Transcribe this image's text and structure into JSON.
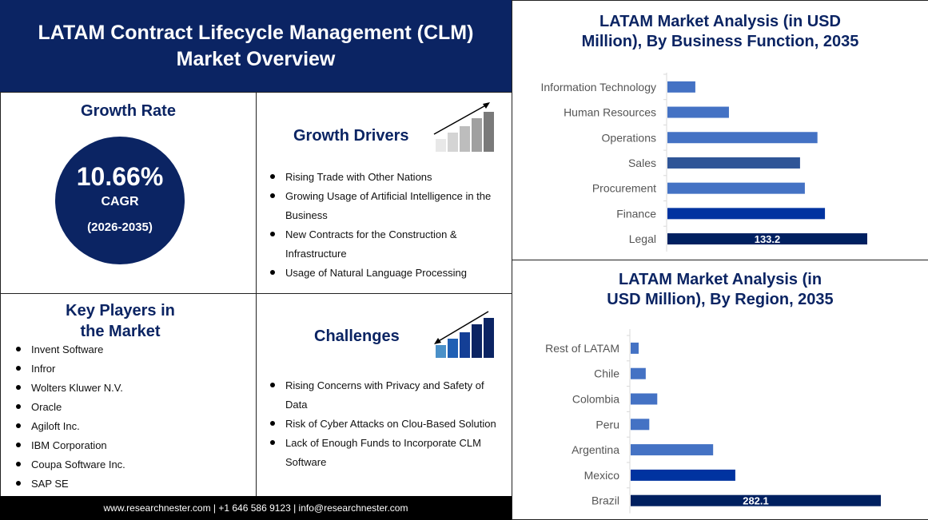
{
  "header": {
    "title_line1": "LATAM Contract Lifecycle Management (CLM)",
    "title_line2": "Market Overview"
  },
  "growth": {
    "title": "Growth Rate",
    "value": "10.66%",
    "label": "CAGR",
    "period": "(2026-2035)"
  },
  "drivers": {
    "title": "Growth Drivers",
    "items": [
      "Rising Trade with Other Nations",
      "Growing Usage of Artificial Intelligence in the Business",
      "New Contracts for the Construction & Infrastructure",
      "Usage of Natural Language Processing"
    ]
  },
  "players": {
    "title_line1": "Key Players in",
    "title_line2": "the Market",
    "items": [
      "Invent Software",
      "Infror",
      "Wolters Kluwer N.V.",
      "Oracle",
      "Agiloft Inc.",
      "IBM Corporation",
      "Coupa Software Inc.",
      "SAP SE"
    ]
  },
  "challenges": {
    "title": "Challenges",
    "items": [
      "Rising Concerns with Privacy and Safety of Data",
      "Risk of Cyber Attacks on Clou-Based Solution",
      "Lack of Enough Funds to Incorporate CLM Software"
    ]
  },
  "footer": {
    "text": "www.researchnester.com  | +1 646 586 9123 | info@researchnester.com"
  },
  "chart_data": [
    {
      "type": "bar",
      "orientation": "horizontal",
      "title": "LATAM Market Analysis (in USD Million), By Business Function, 2035",
      "title_line1": "LATAM Market Analysis (in USD",
      "title_line2": "Million), By Business Function, 2035",
      "categories": [
        "Information Technology",
        "Human Resources",
        "Operations",
        "Sales",
        "Procurement",
        "Finance",
        "Legal"
      ],
      "values": [
        18.6,
        41,
        100,
        88.4,
        91.6,
        105,
        133.2
      ],
      "data_labels": [
        "",
        "",
        "",
        "",
        "",
        "",
        "133.2"
      ],
      "colors": [
        "#4472c4",
        "#4472c4",
        "#4472c4",
        "#2f5597",
        "#4472c4",
        "#0033a0",
        "#002060"
      ],
      "grid": false
    },
    {
      "type": "bar",
      "orientation": "horizontal",
      "title": "LATAM Market Analysis (in USD Million), By Region, 2035",
      "title_line1": "LATAM Market Analysis (in",
      "title_line2": "USD Million), By Region, 2035",
      "categories": [
        "Rest of LATAM",
        "Chile",
        "Colombia",
        "Peru",
        "Argentina",
        "Mexico",
        "Brazil"
      ],
      "values": [
        9,
        17,
        30,
        21,
        93,
        118,
        282.1
      ],
      "data_labels": [
        "",
        "",
        "",
        "",
        "",
        "",
        "282.1"
      ],
      "colors": [
        "#4472c4",
        "#4472c4",
        "#4472c4",
        "#4472c4",
        "#4472c4",
        "#0033a0",
        "#002060"
      ],
      "grid": false
    }
  ]
}
